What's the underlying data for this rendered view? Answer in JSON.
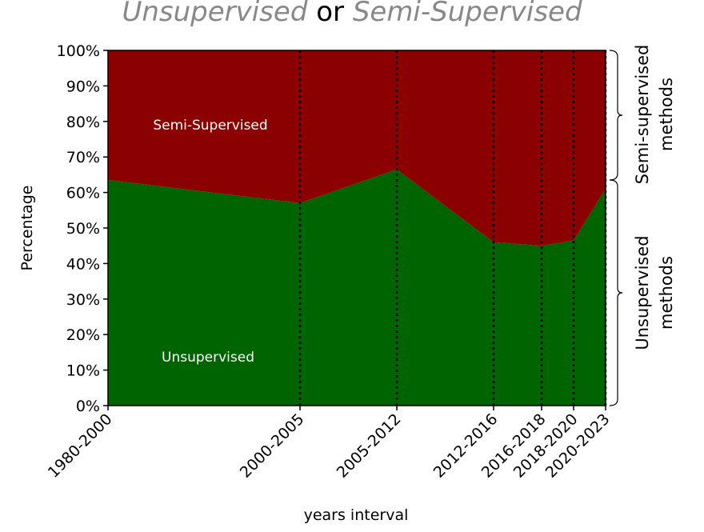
{
  "chart_data": {
    "type": "area",
    "title": [
      "Unsupervised",
      "or",
      "Semi-Supervised"
    ],
    "x_label": "years interval",
    "y_label": "Percentage",
    "categories": [
      "1980-2000",
      "2000-2005",
      "2005-2012",
      "2012-2016",
      "2016-2018",
      "2018-2020",
      "2020-2023"
    ],
    "series": [
      {
        "name": "Unsupervised",
        "color": "#006400",
        "values": [
          63.5,
          57,
          66.5,
          46,
          45,
          46.5,
          61
        ]
      },
      {
        "name": "Semi-Supervised",
        "color": "#8b0000",
        "values": [
          36.5,
          43,
          33.5,
          54,
          55,
          53.5,
          39
        ]
      }
    ],
    "stacked": true,
    "ylim": [
      0,
      100
    ],
    "yticks": [
      {
        "value": 0,
        "label": "0%"
      },
      {
        "value": 10,
        "label": "10%"
      },
      {
        "value": 20,
        "label": "20%"
      },
      {
        "value": 30,
        "label": "30%"
      },
      {
        "value": 40,
        "label": "40%"
      },
      {
        "value": 50,
        "label": "50%"
      },
      {
        "value": 60,
        "label": "60%"
      },
      {
        "value": 70,
        "label": "70%"
      },
      {
        "value": 80,
        "label": "80%"
      },
      {
        "value": 90,
        "label": "90%"
      },
      {
        "value": 100,
        "label": "100%"
      }
    ],
    "annotations": [
      [
        "Semi-supervised",
        "methods"
      ],
      [
        "Unsupervised",
        "methods"
      ]
    ]
  }
}
